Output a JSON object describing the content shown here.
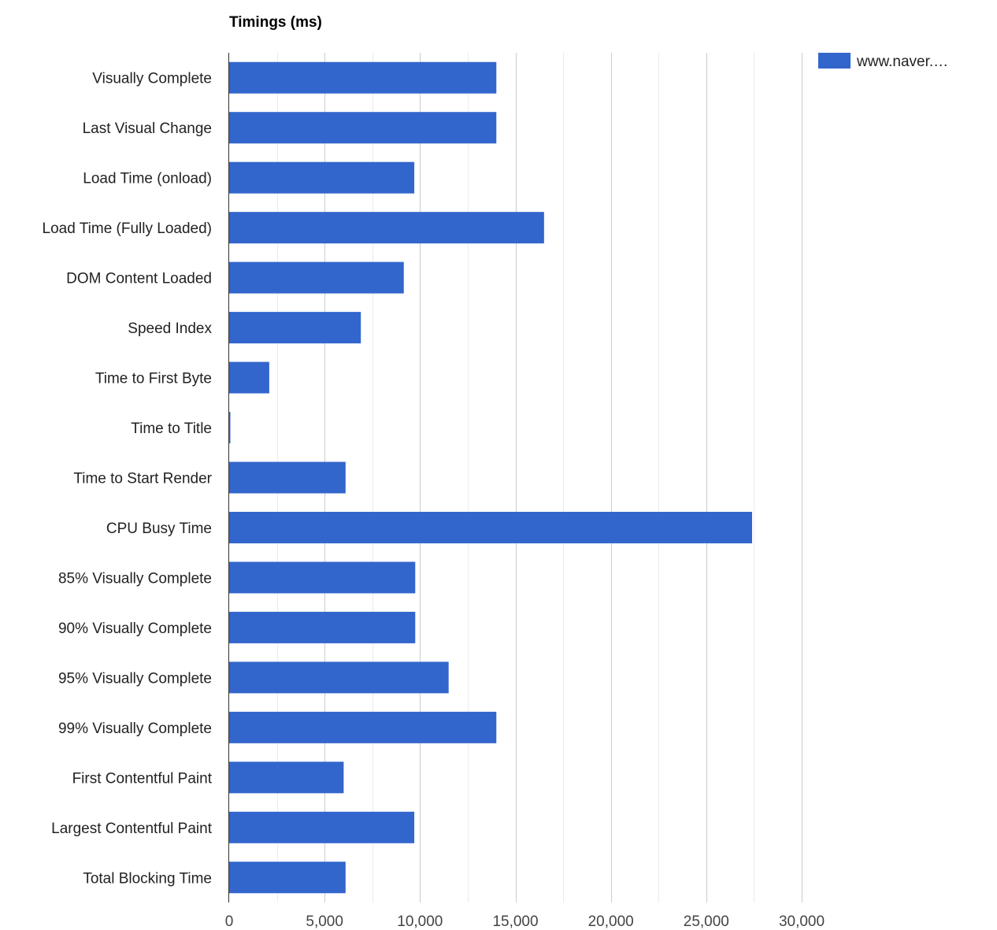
{
  "chart_data": {
    "type": "bar",
    "orientation": "horizontal",
    "title": "Timings (ms)",
    "categories": [
      "Visually Complete",
      "Last Visual Change",
      "Load Time (onload)",
      "Load Time (Fully Loaded)",
      "DOM Content Loaded",
      "Speed Index",
      "Time to First Byte",
      "Time to Title",
      "Time to Start Render",
      "CPU Busy Time",
      "85% Visually Complete",
      "90% Visually Complete",
      "95% Visually Complete",
      "99% Visually Complete",
      "First Contentful Paint",
      "Largest Contentful Paint",
      "Total Blocking Time"
    ],
    "series": [
      {
        "name": "www.naver.…",
        "color": "#3366cc",
        "values": [
          14000,
          14000,
          9700,
          16500,
          9150,
          6900,
          2100,
          50,
          6100,
          27400,
          9750,
          9750,
          11500,
          14000,
          6000,
          9700,
          6100
        ]
      }
    ],
    "xlim": [
      0,
      30000
    ],
    "xticks": [
      0,
      5000,
      10000,
      15000,
      20000,
      25000,
      30000
    ],
    "xtick_labels": [
      "0",
      "5,000",
      "10,000",
      "15,000",
      "20,000",
      "25,000",
      "30,000"
    ],
    "minor_gridlines": true,
    "grid": true,
    "legend_position": "top-right",
    "colors": {
      "bar": "#3366cc",
      "major_grid": "#cccccc",
      "minor_grid": "#ebebeb",
      "axis": "#333333"
    }
  }
}
